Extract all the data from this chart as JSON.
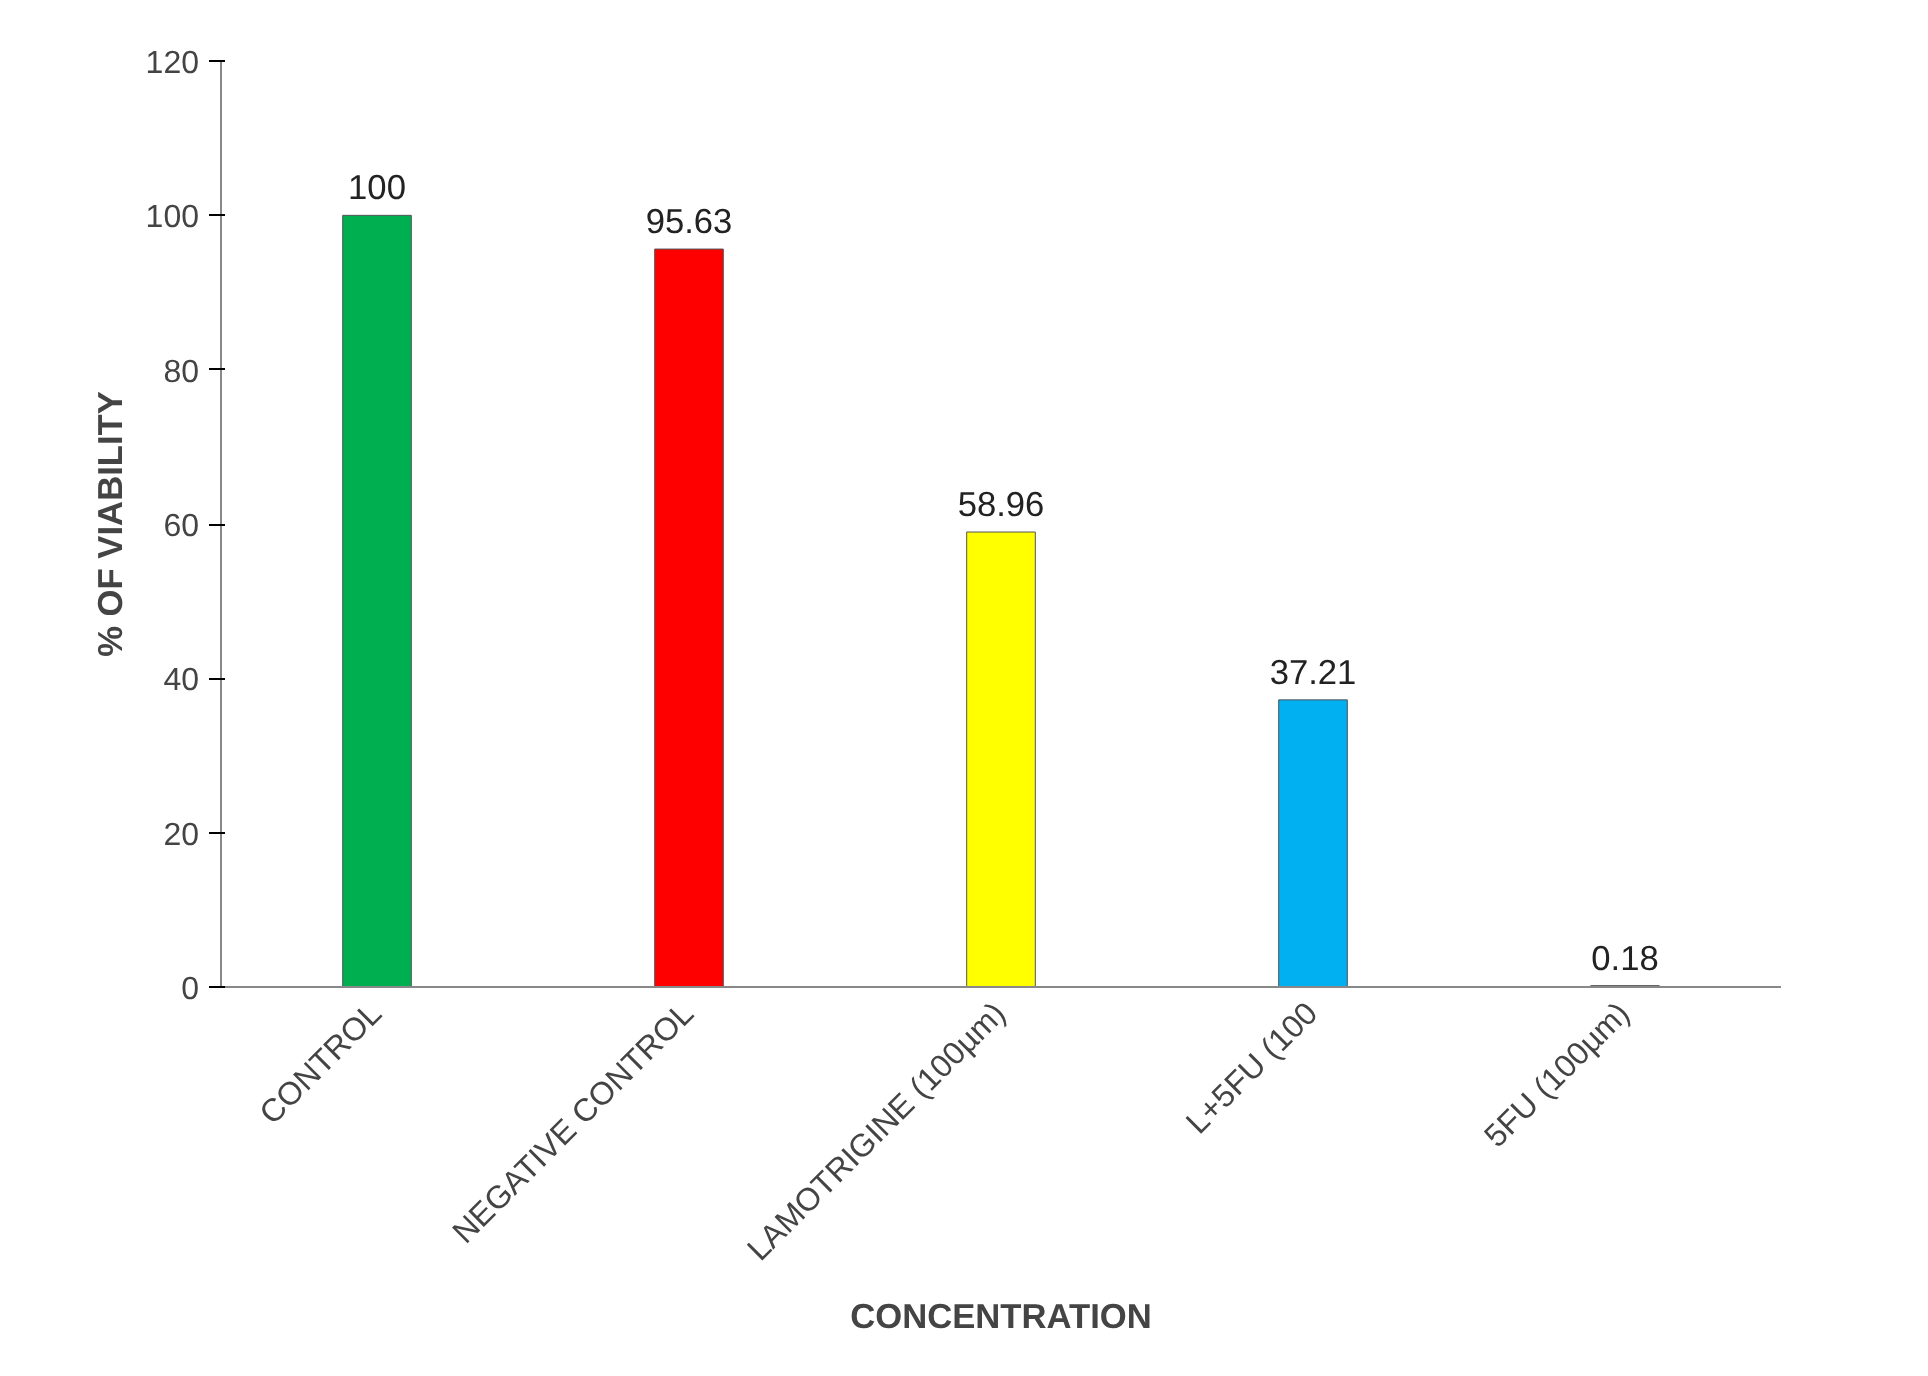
{
  "chart_data": {
    "type": "bar",
    "xlabel": "CONCENTRATION",
    "ylabel": "% OF VIABILITY",
    "categories": [
      "CONTROL",
      "NEGATIVE CONTROL",
      "LAMOTRIGINE (100µm)",
      "L+5FU (100",
      "5FU (100µm)"
    ],
    "values": [
      100,
      95.63,
      58.96,
      37.21,
      0.18
    ],
    "colors": [
      "#00b050",
      "#ff0000",
      "#ffff00",
      "#00b0f0",
      "#eeece1"
    ],
    "ylim": [
      0,
      120
    ],
    "yticks": [
      0,
      20,
      40,
      60,
      80,
      100,
      120
    ],
    "data_labels": true,
    "grid": false
  }
}
